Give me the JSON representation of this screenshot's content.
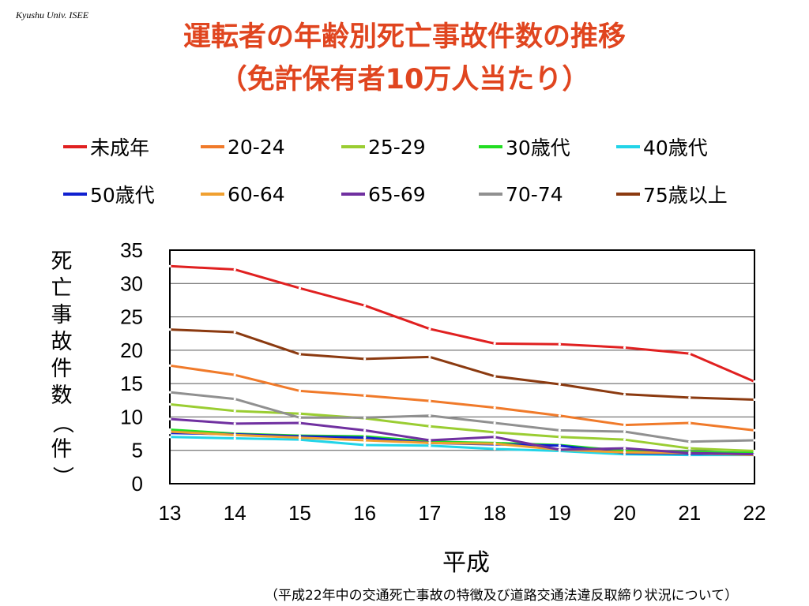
{
  "header": {
    "credit": "Kyushu Univ. ISEE",
    "title_line1": "運転者の年齢別死亡事故件数の推移",
    "title_line2": "（免許保有者10万人当たり）"
  },
  "footer": {
    "source": "（平成22年中の交通死亡事故の特徴及び道路交通法違反取締り状況について）"
  },
  "chart_data": {
    "type": "line",
    "xlabel": "平成",
    "ylabel": "死亡事故件数（件）",
    "x": [
      13,
      14,
      15,
      16,
      17,
      18,
      19,
      20,
      21,
      22
    ],
    "ylim": [
      0,
      35
    ],
    "yticks": [
      0,
      5,
      10,
      15,
      20,
      25,
      30,
      35
    ],
    "grid": true,
    "legend_position": "top",
    "series": [
      {
        "name": "未成年",
        "color": "#e02020",
        "values": [
          32.6,
          32.1,
          29.3,
          26.7,
          23.2,
          21.0,
          20.9,
          20.4,
          19.5,
          15.3
        ]
      },
      {
        "name": "20-24",
        "color": "#f07a2a",
        "values": [
          17.7,
          16.3,
          13.9,
          13.2,
          12.4,
          11.4,
          10.2,
          8.8,
          9.1,
          8.0
        ]
      },
      {
        "name": "25-29",
        "color": "#9acd32",
        "values": [
          11.9,
          10.9,
          10.5,
          9.8,
          8.6,
          7.7,
          7.0,
          6.6,
          5.3,
          4.9
        ]
      },
      {
        "name": "30歳代",
        "color": "#22dd22",
        "values": [
          8.1,
          7.5,
          7.2,
          7.1,
          6.3,
          6.1,
          5.8,
          4.9,
          4.8,
          4.6
        ]
      },
      {
        "name": "40歳代",
        "color": "#22d4e8",
        "values": [
          7.0,
          6.8,
          6.6,
          5.8,
          5.7,
          5.2,
          4.9,
          4.4,
          4.3,
          4.3
        ]
      },
      {
        "name": "50歳代",
        "color": "#1020d0",
        "values": [
          7.6,
          7.4,
          7.1,
          6.9,
          6.1,
          5.9,
          5.7,
          4.6,
          4.5,
          4.4
        ]
      },
      {
        "name": "60-64",
        "color": "#f0a030",
        "values": [
          7.8,
          7.3,
          6.9,
          6.5,
          6.1,
          6.0,
          5.1,
          4.7,
          4.6,
          4.3
        ]
      },
      {
        "name": "65-69",
        "color": "#7030a0",
        "values": [
          9.7,
          9.0,
          9.1,
          8.0,
          6.5,
          7.0,
          5.1,
          5.3,
          4.6,
          4.4
        ]
      },
      {
        "name": "70-74",
        "color": "#909090",
        "values": [
          13.7,
          12.7,
          9.9,
          9.9,
          10.2,
          9.1,
          8.0,
          7.8,
          6.3,
          6.5
        ]
      },
      {
        "name": "75歳以上",
        "color": "#8b3a10",
        "values": [
          23.1,
          22.7,
          19.4,
          18.7,
          19.0,
          16.1,
          14.9,
          13.4,
          12.9,
          12.6
        ]
      }
    ]
  }
}
